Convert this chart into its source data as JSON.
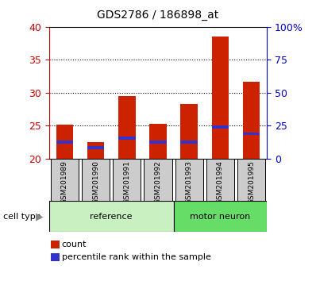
{
  "title": "GDS2786 / 186898_at",
  "categories": [
    "GSM201989",
    "GSM201990",
    "GSM201991",
    "GSM201992",
    "GSM201993",
    "GSM201994",
    "GSM201995"
  ],
  "red_values": [
    25.2,
    22.5,
    29.5,
    25.3,
    28.3,
    38.5,
    31.7
  ],
  "blue_values": [
    22.5,
    21.7,
    23.1,
    22.5,
    22.5,
    24.8,
    23.8
  ],
  "ymin": 20,
  "ymax": 40,
  "yticks_left": [
    20,
    25,
    30,
    35,
    40
  ],
  "yticks_right_vals": [
    0,
    25,
    50,
    75,
    100
  ],
  "yticks_right_labels": [
    "0",
    "25",
    "50",
    "75",
    "100%"
  ],
  "group1_label": "reference",
  "group2_label": "motor neuron",
  "group1_indices": [
    0,
    1,
    2,
    3
  ],
  "group2_indices": [
    4,
    5,
    6
  ],
  "legend1_label": "count",
  "legend2_label": "percentile rank within the sample",
  "cell_type_label": "cell type",
  "red_color": "#cc2200",
  "blue_color": "#3333cc",
  "bar_width": 0.55,
  "group1_bg": "#c8f0c0",
  "group2_bg": "#66dd66",
  "xticklabel_bg": "#cccccc",
  "left_axis_color": "#cc0000",
  "right_axis_color": "#0000cc"
}
